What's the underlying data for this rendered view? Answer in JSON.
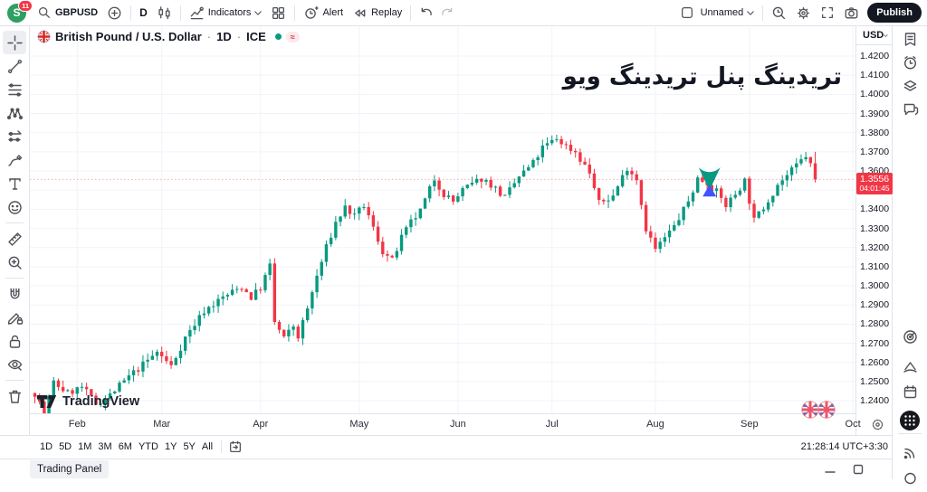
{
  "topbar": {
    "avatar_initial": "S",
    "notification_count": "11",
    "symbol": "GBPUSD",
    "interval": "D",
    "indicators_label": "Indicators",
    "alert_label": "Alert",
    "replay_label": "Replay",
    "layout_name": "Unnamed",
    "publish_label": "Publish"
  },
  "legend": {
    "symbol_title": "British Pound / U.S. Dollar",
    "interval": "1D",
    "exchange": "ICE",
    "separator": "·",
    "delay_glyph": "≈"
  },
  "overlay": {
    "persian_text": "تریدینگ پنل تریدینگ ویو",
    "watermark": "TradingView"
  },
  "price_axis": {
    "currency": "USD",
    "last_price": "1.3556",
    "countdown": "04:01:45"
  },
  "range_bar": {
    "ranges": [
      "1D",
      "5D",
      "1M",
      "3M",
      "6M",
      "YTD",
      "1Y",
      "5Y",
      "All"
    ],
    "clock": "21:28:14 UTC+3:30"
  },
  "panel_bar": {
    "tab_label": "Trading Panel"
  },
  "left_toolbar_tools": [
    "crosshair",
    "trend-line",
    "fib-retracement",
    "xabcd-pattern",
    "projection",
    "brush",
    "text",
    "emoji",
    "ruler",
    "zoom-in",
    "magnet",
    "drawing-mode",
    "lock-all",
    "hide-all",
    "remove-all"
  ],
  "right_sidebar_tools": [
    "watchlist",
    "alerts",
    "object-tree",
    "chat",
    "screener",
    "pine",
    "calendar",
    "apps",
    "broadcast"
  ],
  "chart_data": {
    "type": "candlestick",
    "symbol": "GBPUSD",
    "description": "British Pound / U.S. Dollar",
    "interval": "1D",
    "exchange": "ICE",
    "y_axis": {
      "min": 1.24,
      "max": 1.42,
      "tick_step": 0.01
    },
    "x_axis_months": [
      [
        "Feb",
        9
      ],
      [
        "Mar",
        27
      ],
      [
        "Apr",
        48
      ],
      [
        "May",
        69
      ],
      [
        "Jun",
        90
      ],
      [
        "Jul",
        110
      ],
      [
        "Aug",
        132
      ],
      [
        "Sep",
        152
      ],
      [
        "Oct",
        174
      ]
    ],
    "candle_count": 167,
    "close_waypoints": [
      [
        0,
        1.244
      ],
      [
        2,
        1.2335
      ],
      [
        4,
        1.2495
      ],
      [
        7,
        1.244
      ],
      [
        10,
        1.247
      ],
      [
        13,
        1.2385
      ],
      [
        16,
        1.243
      ],
      [
        20,
        1.2525
      ],
      [
        24,
        1.261
      ],
      [
        26,
        1.2655
      ],
      [
        29,
        1.258
      ],
      [
        32,
        1.273
      ],
      [
        36,
        1.287
      ],
      [
        40,
        1.294
      ],
      [
        44,
        1.2995
      ],
      [
        46,
        1.294
      ],
      [
        48,
        1.299
      ],
      [
        50,
        1.3105
      ],
      [
        51,
        1.281
      ],
      [
        53,
        1.2725
      ],
      [
        55,
        1.279
      ],
      [
        56,
        1.2735
      ],
      [
        58,
        1.288
      ],
      [
        60,
        1.305
      ],
      [
        62,
        1.32
      ],
      [
        64,
        1.333
      ],
      [
        66,
        1.341
      ],
      [
        68,
        1.336
      ],
      [
        70,
        1.342
      ],
      [
        72,
        1.33
      ],
      [
        74,
        1.318
      ],
      [
        76,
        1.313
      ],
      [
        78,
        1.325
      ],
      [
        80,
        1.333
      ],
      [
        82,
        1.339
      ],
      [
        85,
        1.356
      ],
      [
        87,
        1.348
      ],
      [
        89,
        1.344
      ],
      [
        91,
        1.35
      ],
      [
        93,
        1.353
      ],
      [
        95,
        1.356
      ],
      [
        97,
        1.353
      ],
      [
        100,
        1.346
      ],
      [
        103,
        1.357
      ],
      [
        106,
        1.364
      ],
      [
        108,
        1.372
      ],
      [
        111,
        1.377
      ],
      [
        113,
        1.373
      ],
      [
        115,
        1.37
      ],
      [
        118,
        1.359
      ],
      [
        120,
        1.343
      ],
      [
        123,
        1.347
      ],
      [
        126,
        1.362
      ],
      [
        128,
        1.356
      ],
      [
        130,
        1.33
      ],
      [
        132,
        1.319
      ],
      [
        134,
        1.325
      ],
      [
        136,
        1.331
      ],
      [
        139,
        1.344
      ],
      [
        141,
        1.356
      ],
      [
        143,
        1.354
      ],
      [
        145,
        1.349
      ],
      [
        147,
        1.342
      ],
      [
        149,
        1.348
      ],
      [
        151,
        1.355
      ],
      [
        153,
        1.334
      ],
      [
        155,
        1.341
      ],
      [
        158,
        1.353
      ],
      [
        161,
        1.36
      ],
      [
        164,
        1.368
      ],
      [
        165,
        1.363
      ],
      [
        166,
        1.3556
      ]
    ],
    "last_candle": {
      "open": 1.364,
      "high": 1.37,
      "low": 1.354,
      "close": 1.3556
    },
    "last_price": 1.3556,
    "seed": 7,
    "noise": 0.004,
    "wick": 0.0035,
    "colors": {
      "up": "#089981",
      "down": "#f23645",
      "grid": "#f0f3f9",
      "price_line": "#f23645"
    },
    "markers": [
      {
        "type": "arrow-down",
        "color": "#089981",
        "x_index": 143.5,
        "price": 1.36
      },
      {
        "type": "triangle-up",
        "color": "#4053ff",
        "x_index": 143.5,
        "price": 1.3495
      }
    ]
  }
}
